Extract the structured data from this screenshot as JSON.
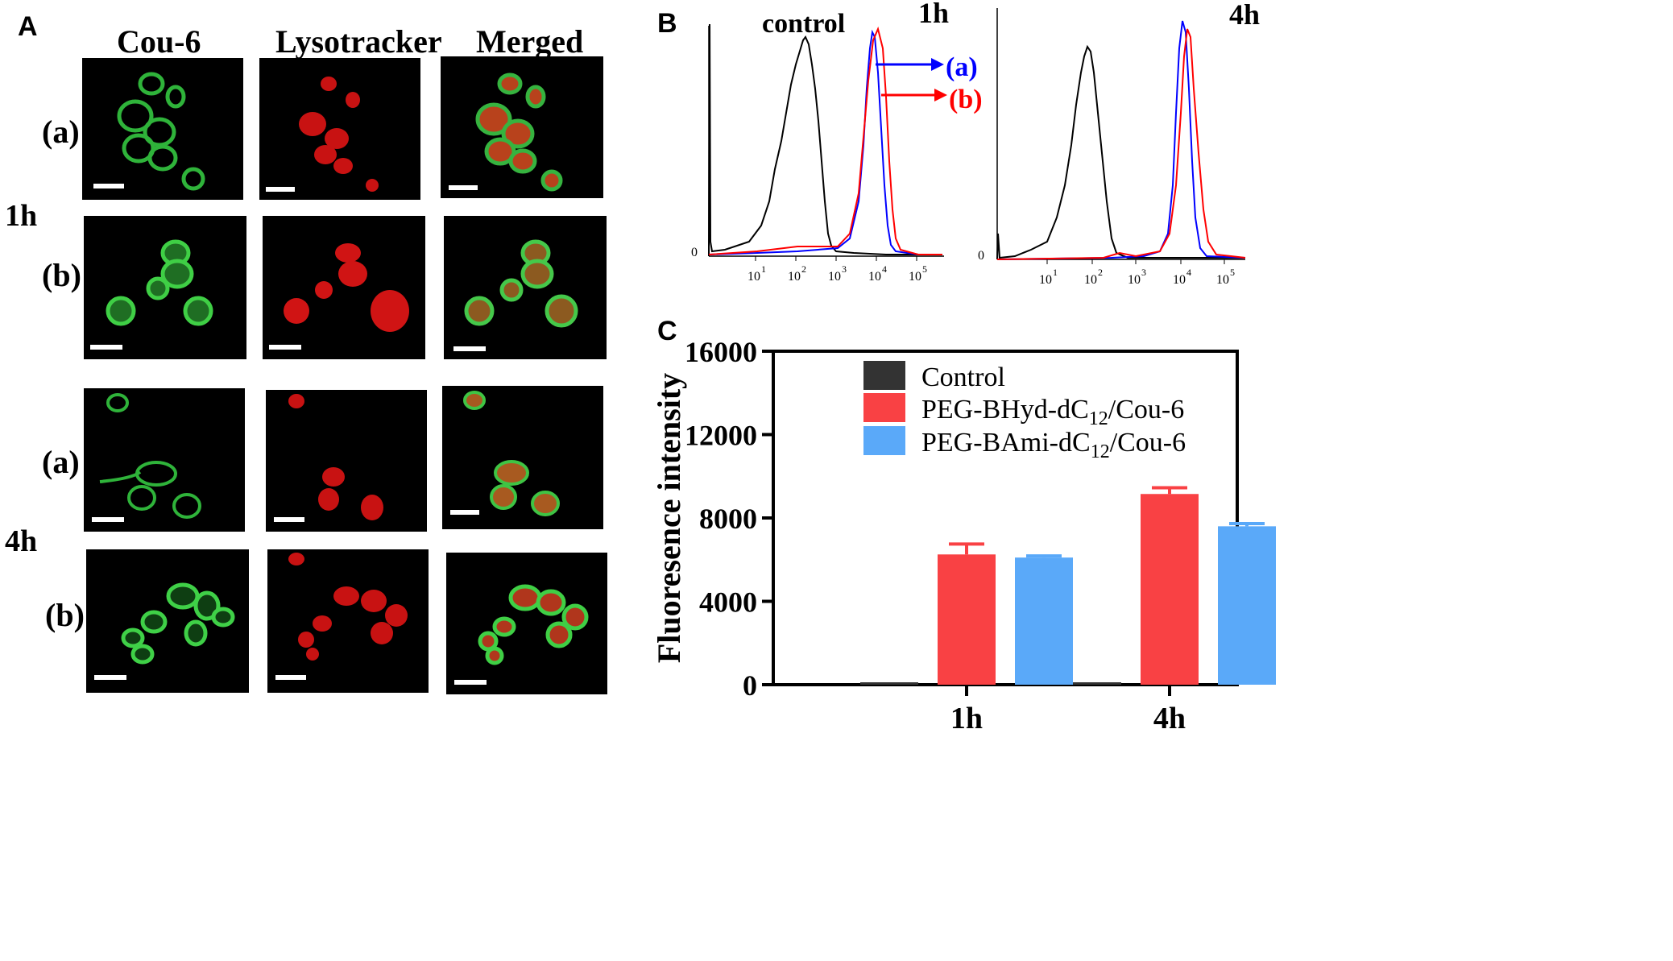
{
  "panel_letters": {
    "a": "A",
    "b": "B",
    "c": "C"
  },
  "micrographs": {
    "columns": [
      "Cou-6",
      "Lysotracker",
      "Merged"
    ],
    "time_labels": [
      "1h",
      "4h"
    ],
    "row_labels": [
      "(a)",
      "(b)",
      "(a)",
      "(b)"
    ]
  },
  "flow": {
    "panels": [
      {
        "time": "1h",
        "control_label": "control",
        "y_tick": "0",
        "x_ticks": [
          "10",
          "10",
          "10",
          "10",
          "10"
        ],
        "x_tick_exps": [
          "1",
          "2",
          "3",
          "4",
          "5"
        ],
        "arrows": [
          {
            "label": "(a)",
            "color": "#0000ff"
          },
          {
            "label": "(b)",
            "color": "#ff0000"
          }
        ]
      },
      {
        "time": "4h",
        "y_tick": "0",
        "x_ticks": [
          "10",
          "10",
          "10",
          "10",
          "10"
        ],
        "x_tick_exps": [
          "1",
          "2",
          "3",
          "4",
          "5"
        ]
      }
    ],
    "colors": {
      "control": "#000000",
      "a": "#0000ff",
      "b": "#ff0000"
    }
  },
  "chart_data": {
    "type": "bar",
    "title": "",
    "xlabel": "",
    "ylabel": "Fluoresence intensity",
    "categories": [
      "1h",
      "4h"
    ],
    "ylim": [
      0,
      16000
    ],
    "yticks": [
      0,
      4000,
      8000,
      12000,
      16000
    ],
    "ytick_labels": [
      "0",
      "4000",
      "8000",
      "12000",
      "16000"
    ],
    "legend_position": "top-right",
    "series": [
      {
        "name": "Control",
        "color": "#333333",
        "values": [
          80,
          80
        ],
        "errors": [
          0,
          0
        ]
      },
      {
        "name": "PEG-BHyd-dC12/Cou-6",
        "name_parts": [
          "PEG-BHyd-dC",
          "12",
          "/Cou-6"
        ],
        "color": "#f94144",
        "values": [
          6250,
          9150
        ],
        "errors": [
          500,
          300
        ]
      },
      {
        "name": "PEG-BAmi-dC12/Cou-6",
        "name_parts": [
          "PEG-BAmi-dC",
          "12",
          "/Cou-6"
        ],
        "color": "#5aa9f9",
        "values": [
          6100,
          7600
        ],
        "errors": [
          80,
          130
        ]
      }
    ]
  }
}
